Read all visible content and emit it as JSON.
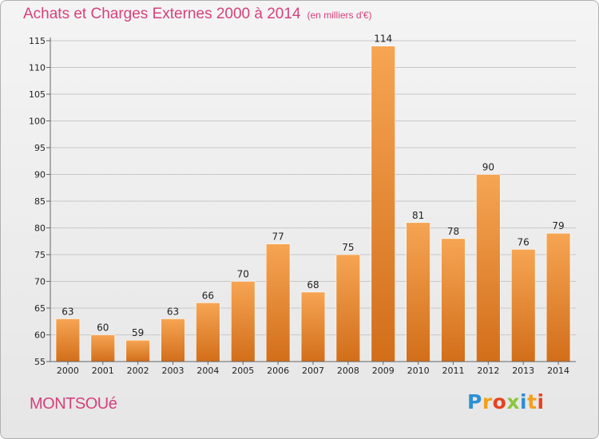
{
  "header": {
    "title": "Achats et Charges Externes 2000 à 2014",
    "subtitle": "(en milliers d'€)"
  },
  "footer": {
    "commune": "MONTSOUé",
    "logo": [
      "P",
      "r",
      "o",
      "x",
      "i",
      "t",
      "i"
    ]
  },
  "colors": {
    "title": "#d6417a",
    "bar_light": "#f6a553",
    "bar_dark": "#d26e1a",
    "grid": "#c8c8c8"
  },
  "chart_data": {
    "type": "bar",
    "categories": [
      "2000",
      "2001",
      "2002",
      "2003",
      "2004",
      "2005",
      "2006",
      "2007",
      "2008",
      "2009",
      "2010",
      "2011",
      "2012",
      "2013",
      "2014"
    ],
    "values": [
      63,
      60,
      59,
      63,
      66,
      70,
      77,
      68,
      75,
      114,
      81,
      78,
      90,
      76,
      79
    ],
    "data_labels": [
      "63",
      "60",
      "59",
      "63",
      "66",
      "70",
      "77",
      "68",
      "75",
      "114",
      "81",
      "78",
      "90",
      "76",
      "79"
    ],
    "yticks": [
      55,
      60,
      65,
      70,
      75,
      80,
      85,
      90,
      95,
      100,
      105,
      110,
      115
    ],
    "ylim": [
      55,
      115
    ],
    "grid": true,
    "title": "Achats et Charges Externes 2000 à 2014",
    "subtitle": "(en milliers d'€)"
  }
}
